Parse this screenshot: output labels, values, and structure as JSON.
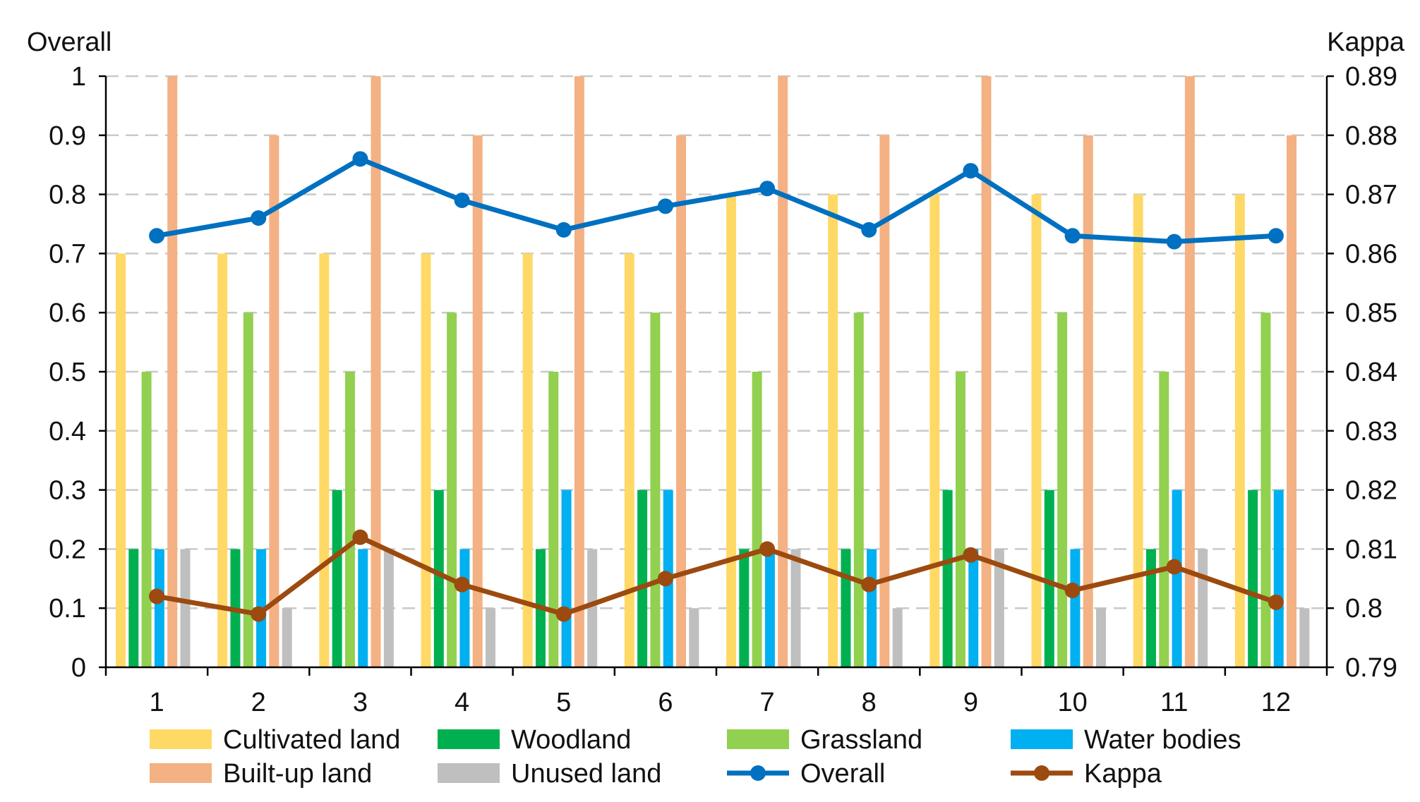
{
  "chart_data": {
    "type": "bar",
    "categories": [
      "1",
      "2",
      "3",
      "4",
      "5",
      "6",
      "7",
      "8",
      "9",
      "10",
      "11",
      "12"
    ],
    "left_axis": {
      "title": "Overall",
      "ylim": [
        0,
        1
      ],
      "ticks": [
        "0",
        "0.1",
        "0.2",
        "0.3",
        "0.4",
        "0.5",
        "0.6",
        "0.7",
        "0.8",
        "0.9",
        "1"
      ]
    },
    "right_axis": {
      "title": "Kappa",
      "ylim": [
        0.79,
        0.89
      ],
      "ticks": [
        "0.79",
        "0.8",
        "0.81",
        "0.82",
        "0.83",
        "0.84",
        "0.85",
        "0.86",
        "0.87",
        "0.88",
        "0.89"
      ]
    },
    "grid": true,
    "legend_position": "bottom",
    "series": [
      {
        "name": "Cultivated land",
        "kind": "bar",
        "axis": "left",
        "color": "#FFD966",
        "values": [
          0.7,
          0.7,
          0.7,
          0.7,
          0.7,
          0.7,
          0.8,
          0.8,
          0.8,
          0.8,
          0.8,
          0.8
        ]
      },
      {
        "name": "Woodland",
        "kind": "bar",
        "axis": "left",
        "color": "#00B050",
        "values": [
          0.2,
          0.2,
          0.3,
          0.3,
          0.2,
          0.3,
          0.2,
          0.2,
          0.3,
          0.3,
          0.2,
          0.3
        ]
      },
      {
        "name": "Grassland",
        "kind": "bar",
        "axis": "left",
        "color": "#92D050",
        "values": [
          0.5,
          0.6,
          0.5,
          0.6,
          0.5,
          0.6,
          0.5,
          0.6,
          0.5,
          0.6,
          0.5,
          0.6
        ]
      },
      {
        "name": "Water bodies",
        "kind": "bar",
        "axis": "left",
        "color": "#00B0F0",
        "values": [
          0.2,
          0.2,
          0.2,
          0.2,
          0.3,
          0.3,
          0.2,
          0.2,
          0.2,
          0.2,
          0.3,
          0.3
        ]
      },
      {
        "name": "Built-up land",
        "kind": "bar",
        "axis": "left",
        "color": "#F4B183",
        "values": [
          1.0,
          0.9,
          1.0,
          0.9,
          1.0,
          0.9,
          1.0,
          0.9,
          1.0,
          0.9,
          1.0,
          0.9
        ]
      },
      {
        "name": "Unused land",
        "kind": "bar",
        "axis": "left",
        "color": "#BFBFBF",
        "values": [
          0.2,
          0.1,
          0.2,
          0.1,
          0.2,
          0.1,
          0.2,
          0.1,
          0.2,
          0.1,
          0.2,
          0.1
        ]
      },
      {
        "name": "Overall",
        "kind": "line",
        "axis": "left",
        "color": "#0070C0",
        "values": [
          0.73,
          0.76,
          0.86,
          0.79,
          0.74,
          0.78,
          0.81,
          0.74,
          0.84,
          0.73,
          0.72,
          0.73
        ]
      },
      {
        "name": "Kappa",
        "kind": "line",
        "axis": "right",
        "color": "#9C4A0F",
        "values": [
          0.802,
          0.799,
          0.812,
          0.804,
          0.799,
          0.805,
          0.81,
          0.804,
          0.809,
          0.803,
          0.807,
          0.801
        ]
      }
    ]
  }
}
